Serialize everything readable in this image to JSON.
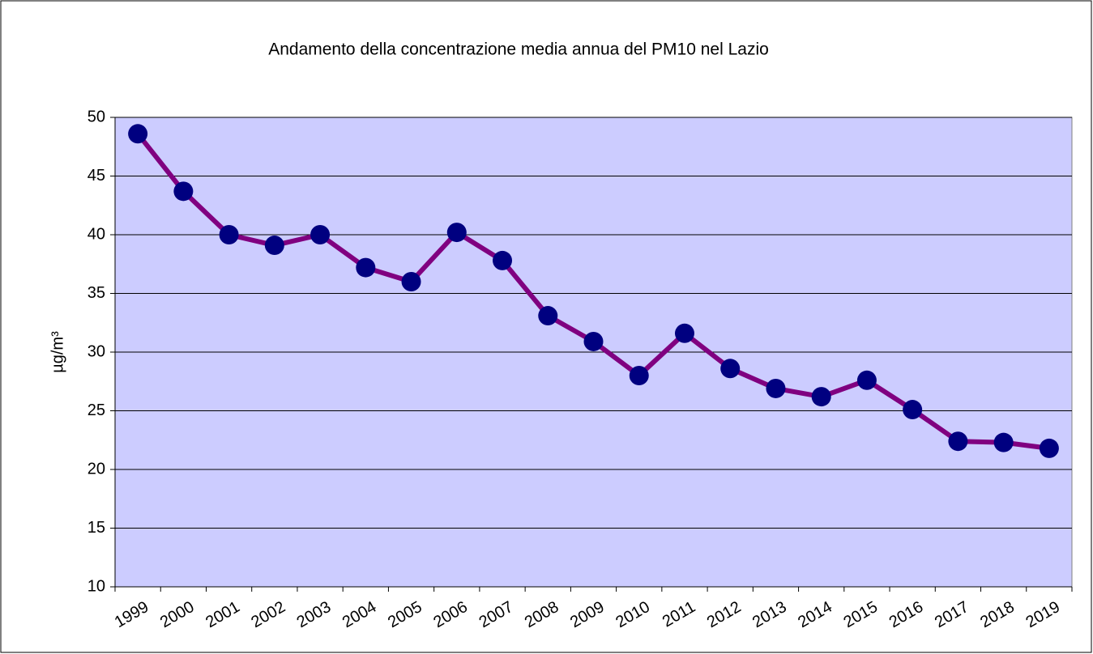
{
  "chart_data": {
    "type": "line",
    "title": "Andamento della concentrazione media annua del PM10 nel Lazio",
    "y_label": "µg/m³",
    "categories": [
      "1999",
      "2000",
      "2001",
      "2002",
      "2003",
      "2004",
      "2005",
      "2006",
      "2007",
      "2008",
      "2009",
      "2010",
      "2011",
      "2012",
      "2013",
      "2014",
      "2015",
      "2016",
      "2017",
      "2018",
      "2019"
    ],
    "series": [
      {
        "name": "PM10",
        "color": "#800080",
        "marker_color": "#000080",
        "values": [
          48.6,
          43.7,
          40.0,
          39.1,
          40.0,
          37.2,
          36.0,
          40.2,
          37.8,
          33.1,
          30.9,
          28.0,
          31.6,
          28.6,
          26.9,
          26.2,
          27.6,
          25.1,
          22.4,
          22.3,
          21.8
        ]
      }
    ],
    "ylim": [
      10,
      50
    ],
    "yticks": [
      10,
      15,
      20,
      25,
      30,
      35,
      40,
      45,
      50
    ],
    "grid": true,
    "plot_background": "#ccccff"
  }
}
